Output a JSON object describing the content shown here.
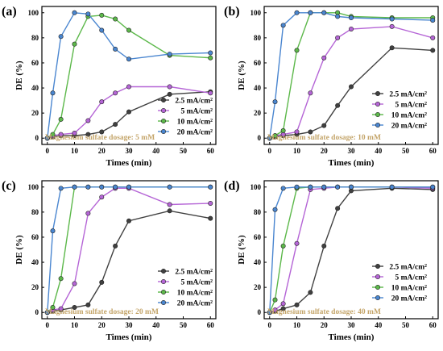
{
  "colors": {
    "2.5 mA/cm2": "#404040",
    "5 mA/cm2": "#b565d6",
    "10 mA/cm2": "#5cb84a",
    "20 mA/cm2": "#4a86d0",
    "annotation": "#c4a56a"
  },
  "chart_data": [
    {
      "type": "line",
      "panel_label": "(a)",
      "xlabel": "Times (min)",
      "ylabel": "DE (%)",
      "xlim": [
        -2,
        62
      ],
      "ylim": [
        -5,
        105
      ],
      "xticks": [
        0,
        10,
        20,
        30,
        40,
        50,
        60
      ],
      "yticks": [
        0,
        20,
        40,
        60,
        80,
        100
      ],
      "annotation": "Magnesium sulfate dosage: 5 mM",
      "legend_position": "right",
      "series": [
        {
          "name": "2.5 mA/cm²",
          "x": [
            0,
            2,
            5,
            10,
            15,
            20,
            25,
            30,
            45,
            60
          ],
          "y": [
            0,
            1,
            2,
            2,
            3,
            5,
            11,
            21,
            35,
            37
          ]
        },
        {
          "name": "5 mA/cm²",
          "x": [
            0,
            2,
            5,
            10,
            15,
            20,
            25,
            30,
            45,
            60
          ],
          "y": [
            0,
            2,
            3,
            4,
            14,
            29,
            36,
            41,
            41,
            36
          ]
        },
        {
          "name": "10 mA/cm²",
          "x": [
            0,
            2,
            5,
            10,
            15,
            20,
            25,
            30,
            45,
            60
          ],
          "y": [
            0,
            3,
            15,
            75,
            97,
            98,
            95,
            86,
            66,
            64
          ]
        },
        {
          "name": "20 mA/cm²",
          "x": [
            0,
            2,
            5,
            10,
            15,
            20,
            25,
            30,
            45,
            60
          ],
          "y": [
            0,
            36,
            81,
            100,
            99,
            86,
            71,
            63,
            67,
            68
          ]
        }
      ]
    },
    {
      "type": "line",
      "panel_label": "(b)",
      "xlabel": "Times (min)",
      "ylabel": "DE (%)",
      "xlim": [
        -2,
        62
      ],
      "ylim": [
        -5,
        105
      ],
      "xticks": [
        0,
        10,
        20,
        30,
        40,
        50,
        60
      ],
      "yticks": [
        0,
        20,
        40,
        60,
        80,
        100
      ],
      "annotation": "Magnesium sulfate dosage: 10 mM",
      "legend_position": "bottom-right",
      "series": [
        {
          "name": "2.5 mA/cm²",
          "x": [
            0,
            2,
            5,
            10,
            15,
            20,
            25,
            30,
            45,
            60
          ],
          "y": [
            0,
            1,
            2,
            3,
            5,
            10,
            26,
            41,
            72,
            70
          ]
        },
        {
          "name": "5 mA/cm²",
          "x": [
            0,
            2,
            5,
            10,
            15,
            20,
            25,
            30,
            45,
            60
          ],
          "y": [
            0,
            2,
            3,
            5,
            36,
            64,
            80,
            87,
            89,
            80
          ]
        },
        {
          "name": "10 mA/cm²",
          "x": [
            0,
            2,
            5,
            10,
            15,
            20,
            25,
            30,
            45,
            60
          ],
          "y": [
            0,
            2,
            6,
            70,
            100,
            100,
            100,
            97,
            96,
            96
          ]
        },
        {
          "name": "20 mA/cm²",
          "x": [
            0,
            2,
            5,
            10,
            15,
            20,
            25,
            30,
            45,
            60
          ],
          "y": [
            0,
            29,
            90,
            100,
            100,
            100,
            97,
            96,
            95,
            94
          ]
        }
      ]
    },
    {
      "type": "line",
      "panel_label": "(c)",
      "xlabel": "Times (min)",
      "ylabel": "DE (%)",
      "xlim": [
        -2,
        62
      ],
      "ylim": [
        -5,
        105
      ],
      "xticks": [
        0,
        10,
        20,
        30,
        40,
        50,
        60
      ],
      "yticks": [
        0,
        20,
        40,
        60,
        80,
        100
      ],
      "annotation": "Magnesium sulfate dosage: 20 mM",
      "legend_position": "bottom-right",
      "series": [
        {
          "name": "2.5 mA/cm²",
          "x": [
            0,
            2,
            5,
            10,
            15,
            20,
            25,
            30,
            45,
            60
          ],
          "y": [
            0,
            1,
            2,
            4,
            6,
            24,
            53,
            73,
            81,
            75
          ]
        },
        {
          "name": "5 mA/cm²",
          "x": [
            0,
            2,
            5,
            10,
            15,
            20,
            25,
            30,
            45,
            60
          ],
          "y": [
            0,
            2,
            3,
            23,
            79,
            92,
            99,
            99,
            86,
            87
          ]
        },
        {
          "name": "10 mA/cm²",
          "x": [
            0,
            2,
            5,
            10,
            15,
            20,
            25,
            30,
            45,
            60
          ],
          "y": [
            0,
            4,
            27,
            100,
            100,
            100,
            100,
            100,
            100,
            100
          ]
        },
        {
          "name": "20 mA/cm²",
          "x": [
            0,
            2,
            5,
            10,
            15,
            20,
            25,
            30,
            45,
            60
          ],
          "y": [
            0,
            65,
            99,
            100,
            100,
            100,
            100,
            100,
            100,
            100
          ]
        }
      ]
    },
    {
      "type": "line",
      "panel_label": "(d)",
      "xlabel": "Times (min)",
      "ylabel": "DE (%)",
      "xlim": [
        -2,
        62
      ],
      "ylim": [
        -5,
        105
      ],
      "xticks": [
        0,
        10,
        20,
        30,
        40,
        50,
        60
      ],
      "yticks": [
        0,
        20,
        40,
        60,
        80,
        100
      ],
      "annotation": "Magnesium sulfate dosage: 40 mM",
      "legend_position": "bottom-right",
      "series": [
        {
          "name": "2.5 mA/cm²",
          "x": [
            0,
            2,
            5,
            10,
            15,
            20,
            25,
            30,
            45,
            60
          ],
          "y": [
            0,
            1,
            3,
            6,
            16,
            53,
            83,
            97,
            99,
            98
          ]
        },
        {
          "name": "5 mA/cm²",
          "x": [
            0,
            2,
            5,
            10,
            15,
            20,
            25,
            30,
            45,
            60
          ],
          "y": [
            0,
            2,
            7,
            55,
            98,
            99,
            100,
            100,
            100,
            99
          ]
        },
        {
          "name": "10 mA/cm²",
          "x": [
            0,
            2,
            5,
            10,
            15,
            20,
            25,
            30,
            45,
            60
          ],
          "y": [
            0,
            10,
            53,
            99,
            100,
            100,
            100,
            100,
            100,
            100
          ]
        },
        {
          "name": "20 mA/cm²",
          "x": [
            0,
            2,
            5,
            10,
            15,
            20,
            25,
            30,
            45,
            60
          ],
          "y": [
            0,
            82,
            99,
            100,
            100,
            100,
            100,
            100,
            100,
            100
          ]
        }
      ]
    }
  ]
}
